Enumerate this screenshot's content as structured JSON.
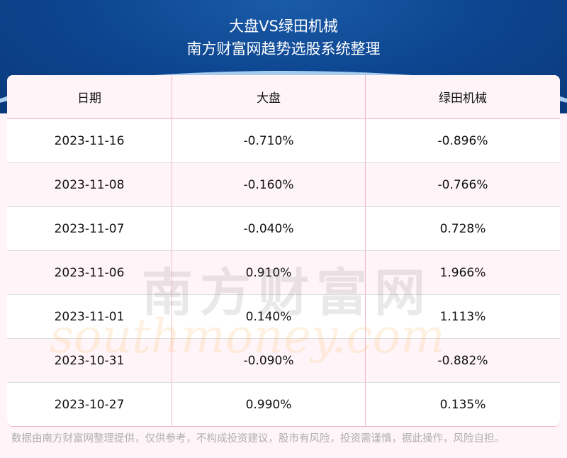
{
  "header": {
    "title": "大盘VS绿田机械",
    "subtitle": "南方财富网趋势选股系统整理"
  },
  "table": {
    "columns": [
      "日期",
      "大盘",
      "绿田机械"
    ],
    "rows": [
      [
        "2023-11-16",
        "-0.710%",
        "-0.896%"
      ],
      [
        "2023-11-08",
        "-0.160%",
        "-0.766%"
      ],
      [
        "2023-11-07",
        "-0.040%",
        "0.728%"
      ],
      [
        "2023-11-06",
        "0.910%",
        "1.966%"
      ],
      [
        "2023-11-01",
        "0.140%",
        "1.113%"
      ],
      [
        "2023-10-31",
        "-0.090%",
        "-0.882%"
      ],
      [
        "2023-10-27",
        "0.990%",
        "0.135%"
      ]
    ]
  },
  "watermark": {
    "cn": "南方财富网",
    "en": "southmoney.com"
  },
  "footer": "数据由南方财富网整理提供，仅供参考，不构成投资建议，股市有风险，投资需谨慎，据此操作，风险自担。"
}
